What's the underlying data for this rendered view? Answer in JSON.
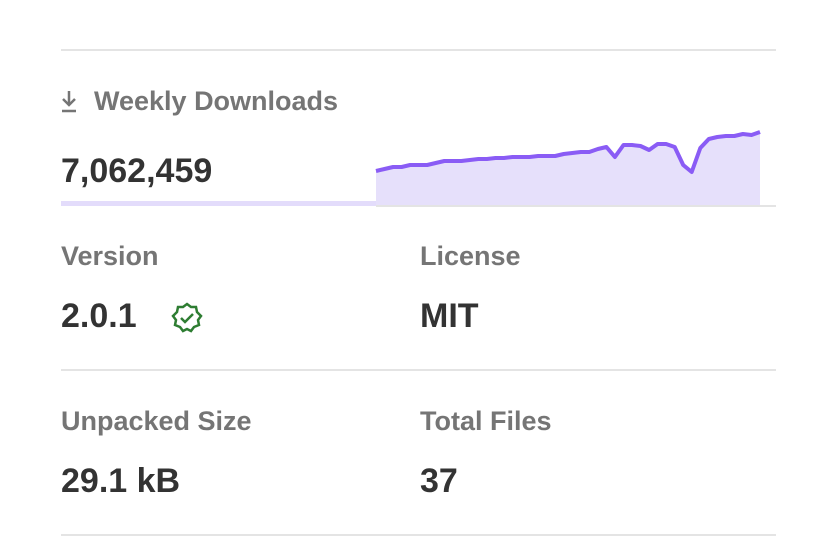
{
  "downloads": {
    "label": "Weekly Downloads",
    "value": "7,062,459",
    "sparkline": [
      34,
      36,
      38,
      38,
      40,
      40,
      40,
      42,
      44,
      44,
      44,
      45,
      46,
      46,
      47,
      47,
      48,
      48,
      48,
      49,
      49,
      49,
      51,
      52,
      53,
      53,
      56,
      58,
      48,
      60,
      60,
      59,
      55,
      61,
      61,
      58,
      40,
      33,
      57,
      66,
      68,
      69,
      69,
      71,
      70,
      73
    ]
  },
  "version": {
    "label": "Version",
    "value": "2.0.1"
  },
  "license": {
    "label": "License",
    "value": "MIT"
  },
  "unpacked_size": {
    "label": "Unpacked Size",
    "value": "29.1 kB"
  },
  "total_files": {
    "label": "Total Files",
    "value": "37"
  }
}
